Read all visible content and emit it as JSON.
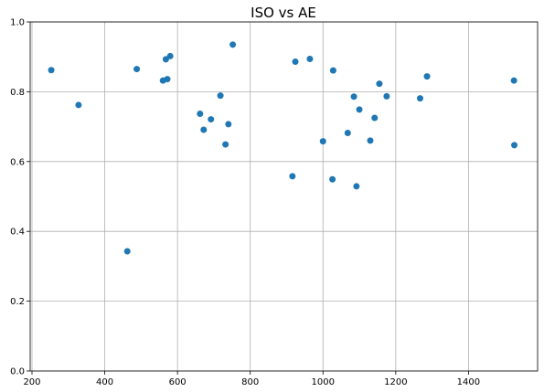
{
  "chart_data": {
    "type": "scatter",
    "title": "ISO vs AE",
    "xlabel": "",
    "ylabel": "",
    "xlim": [
      195,
      1590
    ],
    "ylim": [
      0.0,
      1.0
    ],
    "x_ticks": [
      200,
      400,
      600,
      800,
      1000,
      1200,
      1400
    ],
    "y_ticks": [
      0.0,
      0.2,
      0.4,
      0.6,
      0.8,
      1.0
    ],
    "x_tick_labels": [
      "200",
      "400",
      "600",
      "800",
      "1000",
      "1200",
      "1400"
    ],
    "y_tick_labels": [
      "0.0",
      "0.2",
      "0.4",
      "0.6",
      "0.8",
      "1.0"
    ],
    "grid": true,
    "point_color": "#1f77b4",
    "x": [
      253,
      328,
      462,
      488,
      560,
      568,
      572,
      580,
      662,
      672,
      692,
      718,
      732,
      740,
      752,
      916,
      924,
      964,
      1000,
      1026,
      1028,
      1068,
      1085,
      1092,
      1100,
      1130,
      1142,
      1155,
      1175,
      1267,
      1286,
      1525,
      1526
    ],
    "y": [
      0.862,
      0.762,
      0.343,
      0.865,
      0.832,
      0.893,
      0.836,
      0.902,
      0.737,
      0.691,
      0.721,
      0.789,
      0.649,
      0.707,
      0.935,
      0.558,
      0.886,
      0.894,
      0.658,
      0.549,
      0.861,
      0.682,
      0.786,
      0.529,
      0.749,
      0.66,
      0.725,
      0.823,
      0.787,
      0.781,
      0.844,
      0.832,
      0.647
    ]
  }
}
